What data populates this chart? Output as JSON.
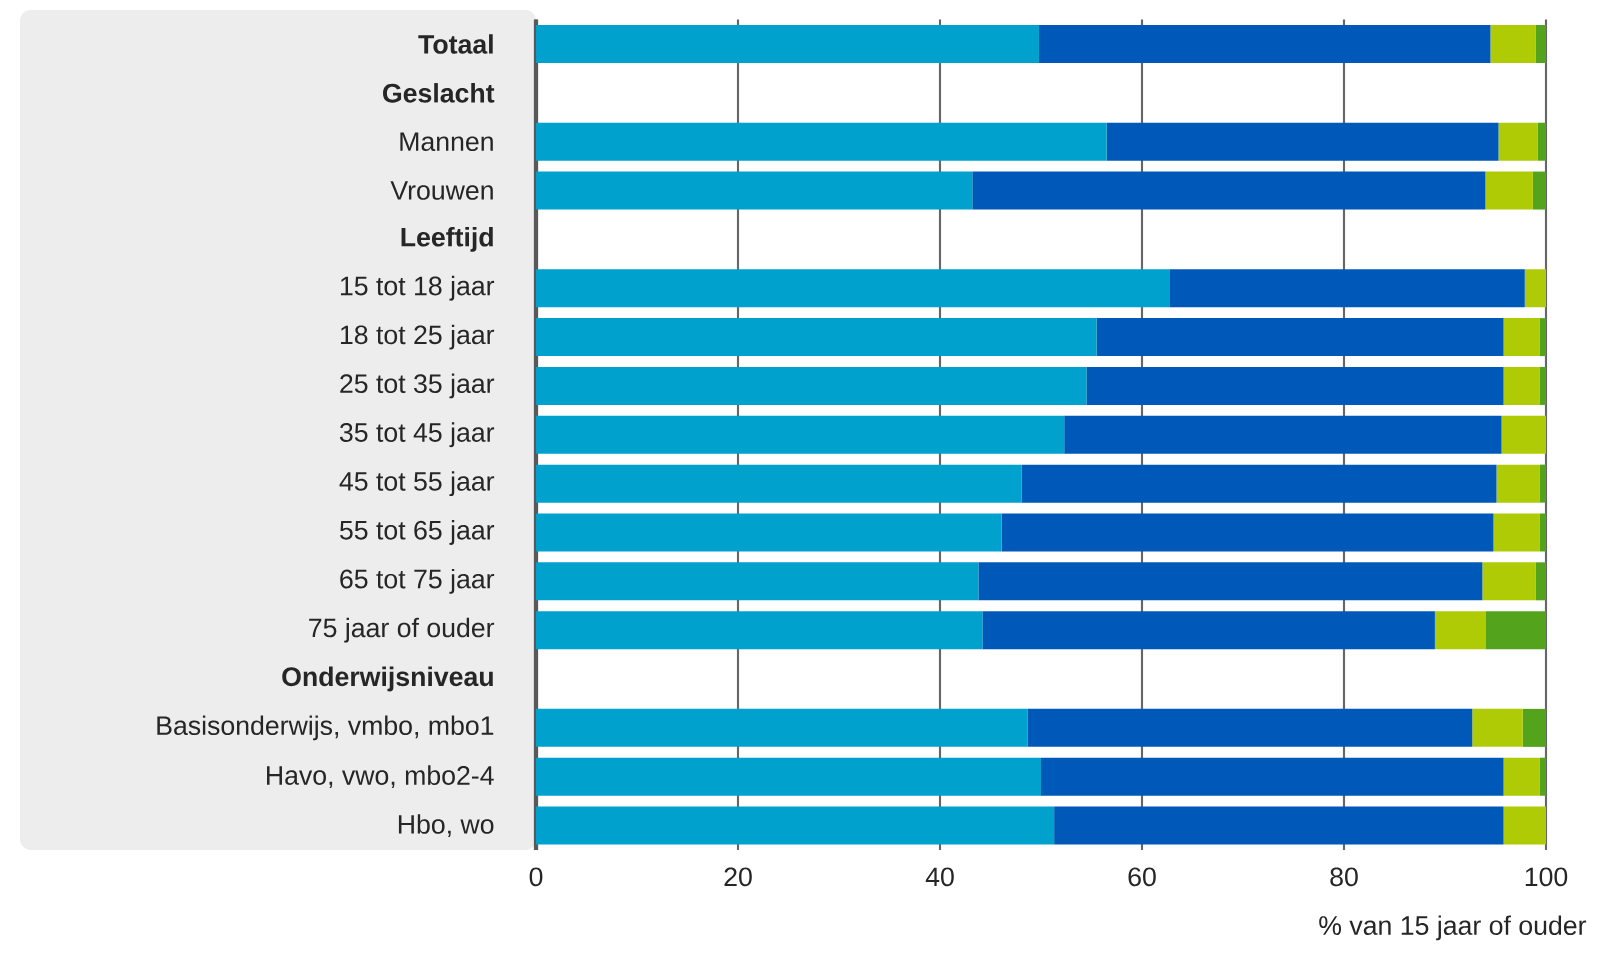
{
  "chart_data": {
    "type": "bar",
    "orientation": "horizontal",
    "stacked": true,
    "grid": "x",
    "categories": [
      "**Totaal**",
      "**Geslacht**",
      "Mannen",
      "Vrouwen",
      "**Leeftijd**",
      "15 tot 18 jaar",
      "18 tot 25 jaar",
      "25 tot 35 jaar",
      "35 tot 45 jaar",
      "45 tot 55 jaar",
      "55 tot 65 jaar",
      "65 tot 75 jaar",
      "75 jaar of ouder",
      "**Onderwijsniveau**",
      "Basisonderwijs, vmbo, mbo1",
      "Havo, vwo, mbo2-4",
      "Hbo, wo"
    ],
    "series": [
      {
        "color": "#00a1cd",
        "values": [
          49.8,
          null,
          56.5,
          43.2,
          null,
          62.7,
          55.5,
          54.5,
          52.3,
          48.1,
          46.1,
          43.8,
          44.2,
          null,
          48.7,
          50.0,
          51.3
        ]
      },
      {
        "color": "#0058b8",
        "values": [
          44.7,
          null,
          38.8,
          50.8,
          null,
          35.2,
          40.3,
          41.3,
          43.3,
          47.0,
          48.7,
          49.9,
          44.8,
          null,
          44.0,
          45.8,
          44.5
        ]
      },
      {
        "color": "#afcb05",
        "values": [
          4.5,
          null,
          3.9,
          4.7,
          null,
          2.1,
          3.6,
          3.6,
          4.4,
          4.3,
          4.6,
          5.3,
          5.0,
          null,
          5.0,
          3.6,
          4.2
        ]
      },
      {
        "color": "#53a31d",
        "values": [
          1.0,
          null,
          0.8,
          1.3,
          null,
          null,
          0.6,
          0.6,
          null,
          0.6,
          0.6,
          1.0,
          6.0,
          null,
          2.3,
          0.6,
          null
        ]
      }
    ],
    "xlim": [
      0,
      100
    ],
    "xticks": [
      0,
      20,
      40,
      60,
      80,
      100
    ],
    "xlabel": "% van 15 jaar of ouder"
  }
}
